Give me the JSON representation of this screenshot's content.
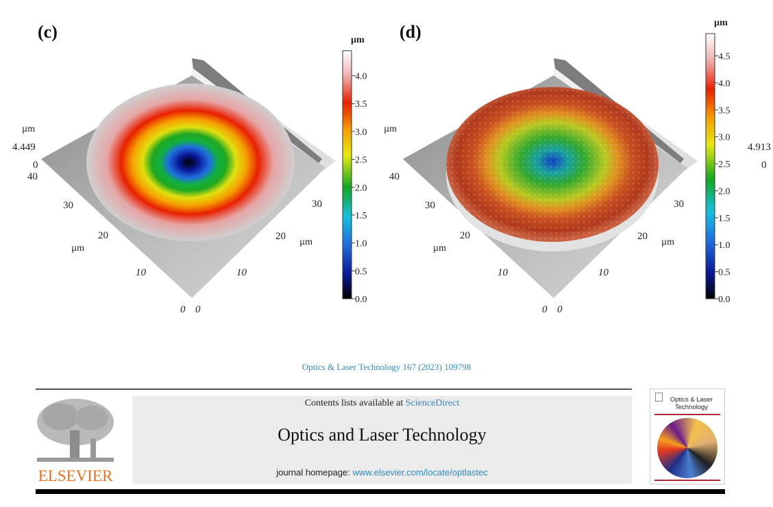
{
  "figure": {
    "panels": [
      {
        "label": "(c)",
        "z_unit": "µm",
        "z_max_label": "4.449",
        "z_min_label": "0",
        "x_ticks": [
          "40",
          "30",
          "20",
          "10",
          "0"
        ],
        "x_unit": "µm",
        "y_ticks": [
          "0",
          "10",
          "20",
          "30"
        ],
        "y_unit": "µm",
        "colorbar": {
          "unit": "µm",
          "ticks": [
            "0.0",
            "0.5",
            "1.0",
            "1.5",
            "2.0",
            "2.5",
            "3.0",
            "3.5",
            "4.0"
          ]
        }
      },
      {
        "label": "(d)",
        "z_unit": "µm",
        "z_max_label": "4.913",
        "z_min_label": "0",
        "x_ticks": [
          "40",
          "30",
          "20",
          "10",
          "0"
        ],
        "x_unit": "µm",
        "y_ticks": [
          "0",
          "10",
          "20",
          "30"
        ],
        "y_unit": "µm",
        "colorbar": {
          "unit": "µm",
          "ticks": [
            "0.0",
            "0.5",
            "1.0",
            "1.5",
            "2.0",
            "2.5",
            "3.0",
            "3.5",
            "4.0",
            "4.5"
          ]
        }
      }
    ]
  },
  "chart_data": [
    {
      "type": "surface",
      "title": "(c)",
      "xlabel": "µm",
      "ylabel": "µm",
      "zlabel": "µm",
      "xlim": [
        0,
        40
      ],
      "ylim": [
        0,
        40
      ],
      "zlim": [
        0,
        4.449
      ],
      "colorbar_range": [
        0,
        4.449
      ],
      "colorbar_ticks": [
        0.0,
        0.5,
        1.0,
        1.5,
        2.0,
        2.5,
        3.0,
        3.5,
        4.0
      ],
      "colormap": [
        "#000000",
        "#0a1a9a",
        "#1f6fe0",
        "#15c0e0",
        "#10a820",
        "#e8e810",
        "#f5a000",
        "#e82000",
        "#f0b0b0",
        "#ffffff"
      ]
    },
    {
      "type": "surface",
      "title": "(d)",
      "xlabel": "µm",
      "ylabel": "µm",
      "zlabel": "µm",
      "xlim": [
        0,
        40
      ],
      "ylim": [
        0,
        40
      ],
      "zlim": [
        0,
        4.913
      ],
      "colorbar_range": [
        0,
        4.913
      ],
      "colorbar_ticks": [
        0.0,
        0.5,
        1.0,
        1.5,
        2.0,
        2.5,
        3.0,
        3.5,
        4.0,
        4.5
      ],
      "colormap": [
        "#000000",
        "#0a1a9a",
        "#1f6fe0",
        "#15c0e0",
        "#10a820",
        "#e8e810",
        "#f5a000",
        "#e82000",
        "#f0b0b0",
        "#ffffff"
      ]
    }
  ],
  "citation": "Optics & Laser Technology 167 (2023) 109798",
  "header": {
    "contents_prefix": "Contents lists available at ",
    "sciencedirect": "ScienceDirect",
    "journal_title": "Optics and Laser Technology",
    "homepage_prefix": "journal homepage: ",
    "homepage_url": "www.elsevier.com/locate/optlastec",
    "publisher": "ELSEVIER",
    "cover_title": "Optics & Laser Technology"
  },
  "colors": {
    "link": "#2d8bbd",
    "publisher": "#e9711c",
    "cover_accent": "#b3243a"
  }
}
